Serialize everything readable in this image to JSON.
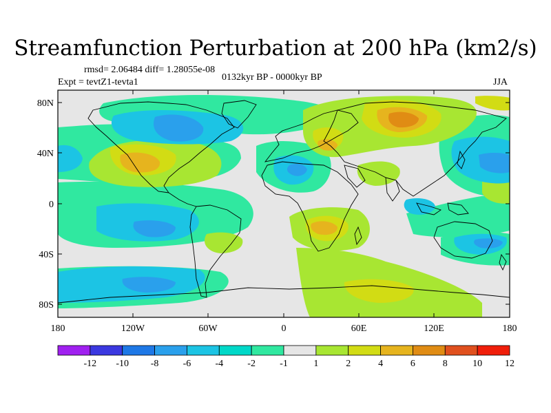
{
  "title": "Streamfunction Perturbation at 200 hPa (km2/s)",
  "stats": "rmsd= 2.06484  diff= 1.28055e-08",
  "period": "0132kyr BP - 0000kyr BP",
  "experiment": "Expt = tevtZ1-tevta1",
  "season": "JJA",
  "lat_ticks": [
    "80N",
    "40N",
    "0",
    "40S",
    "80S"
  ],
  "lon_ticks": [
    "180",
    "120W",
    "60W",
    "0",
    "60E",
    "120E",
    "180"
  ],
  "colorbar": {
    "labels": [
      "-12",
      "-10",
      "-8",
      "-6",
      "-4",
      "-2",
      "-1",
      "1",
      "2",
      "4",
      "6",
      "8",
      "10",
      "12"
    ],
    "colors": [
      "#a020f0",
      "#3b38e0",
      "#1e78e6",
      "#2aa0ec",
      "#1cc4e4",
      "#00d8c8",
      "#30e8a0",
      "#e6e6e6",
      "#a8e632",
      "#d2dc14",
      "#e6b41e",
      "#e08c14",
      "#e0501e",
      "#f01e0a"
    ]
  },
  "icons": [
    "world-coastline-map"
  ]
}
